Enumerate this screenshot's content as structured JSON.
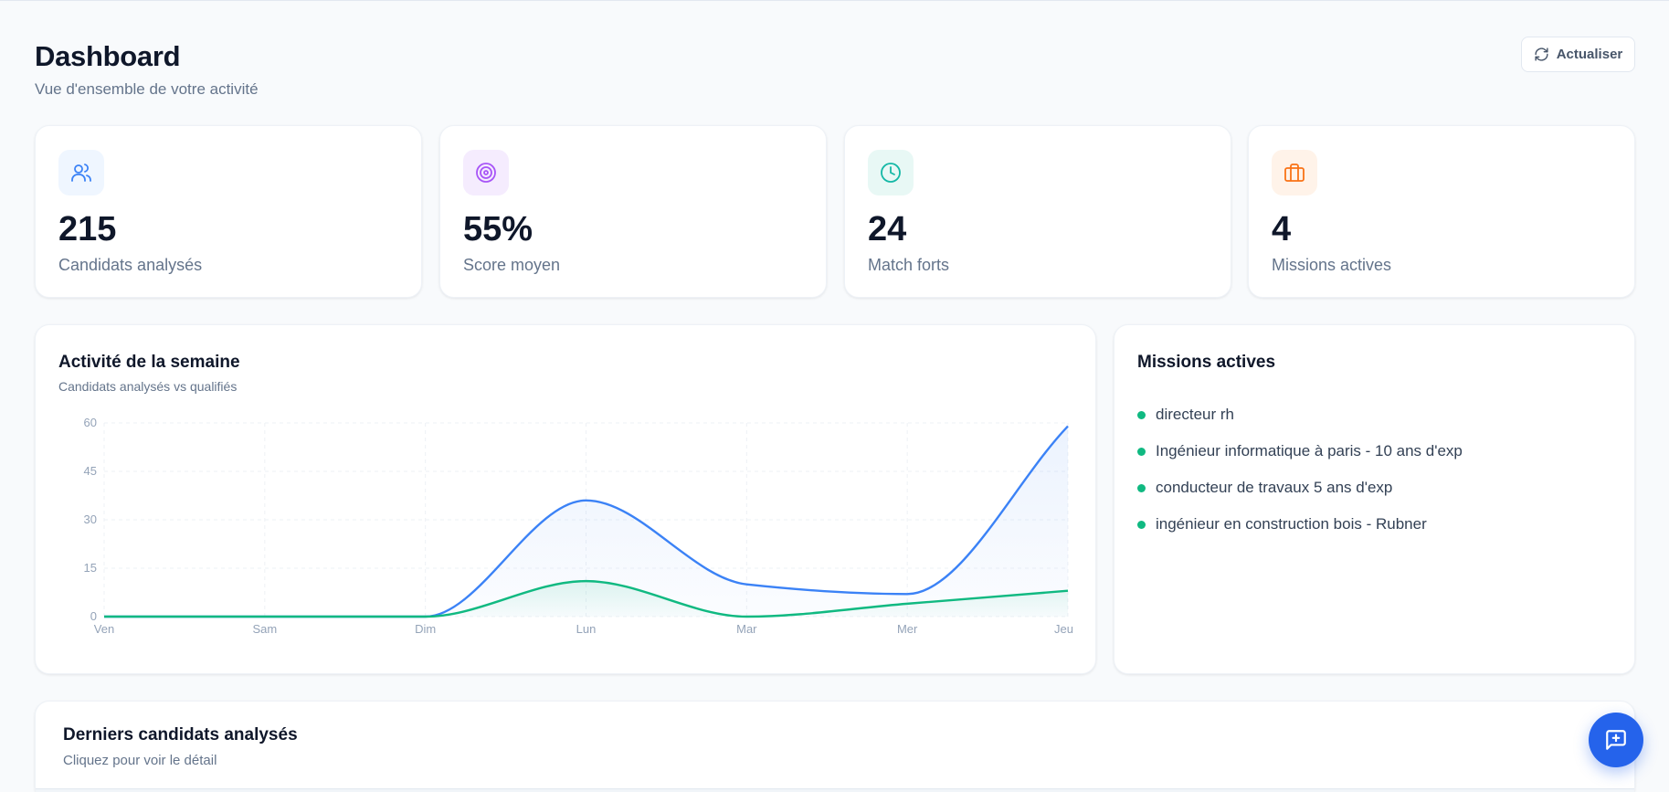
{
  "header": {
    "title": "Dashboard",
    "subtitle": "Vue d'ensemble de votre activité",
    "refresh_label": "Actualiser"
  },
  "stats": [
    {
      "value": "215",
      "label": "Candidats analysés",
      "icon": "users-icon",
      "color": "#3b82f6",
      "bg": "#eff6ff"
    },
    {
      "value": "55%",
      "label": "Score moyen",
      "icon": "target-icon",
      "color": "#a855f7",
      "bg": "#f5ecfe"
    },
    {
      "value": "24",
      "label": "Match forts",
      "icon": "clock-icon",
      "color": "#14b8a6",
      "bg": "#e8f8f5"
    },
    {
      "value": "4",
      "label": "Missions actives",
      "icon": "briefcase-icon",
      "color": "#f97316",
      "bg": "#fff3e9"
    }
  ],
  "activity": {
    "title": "Activité de la semaine",
    "subtitle": "Candidats analysés vs qualifiés"
  },
  "chart_data": {
    "type": "area",
    "categories": [
      "Ven",
      "Sam",
      "Dim",
      "Lun",
      "Mar",
      "Mer",
      "Jeu"
    ],
    "series": [
      {
        "values": [
          0,
          0,
          0,
          36,
          10,
          7,
          59
        ],
        "color": "#3b82f6"
      },
      {
        "values": [
          0,
          0,
          0,
          11,
          0,
          4,
          8
        ],
        "color": "#10b981"
      }
    ],
    "yticks": [
      0,
      15,
      30,
      45,
      60
    ],
    "ylim": [
      0,
      60
    ],
    "grid": true
  },
  "missions": {
    "title": "Missions actives",
    "items": [
      "directeur rh",
      "Ingénieur informatique à paris - 10 ans d'exp",
      "conducteur de travaux 5 ans d'exp",
      "ingénieur en construction bois - Rubner"
    ]
  },
  "recent": {
    "title": "Derniers candidats analysés",
    "subtitle": "Cliquez pour voir le détail"
  },
  "fab": {
    "icon": "message-plus-icon",
    "color": "#2563eb"
  }
}
